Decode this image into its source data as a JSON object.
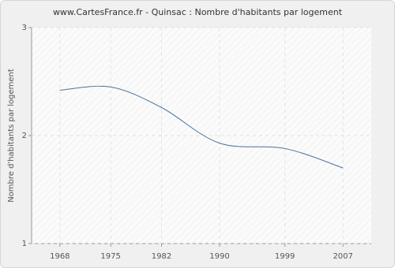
{
  "chart_data": {
    "type": "line",
    "title": "www.CartesFrance.fr - Quinsac : Nombre d'habitants par logement",
    "y_label": "Nombre d'habitants par logement",
    "x": [
      1968,
      1975,
      1982,
      1990,
      1999,
      2007
    ],
    "series": [
      {
        "name": "Quinsac",
        "color": "#4a74a0",
        "values": [
          2.42,
          2.45,
          2.26,
          1.93,
          1.88,
          1.7
        ]
      }
    ],
    "xlim": [
      1964.1,
      2010.9
    ],
    "xticks": [
      1968,
      1975,
      1982,
      1990,
      1999,
      2007
    ],
    "ylim": [
      1,
      3
    ],
    "yticks": [
      1,
      2,
      3
    ],
    "grid": true
  }
}
